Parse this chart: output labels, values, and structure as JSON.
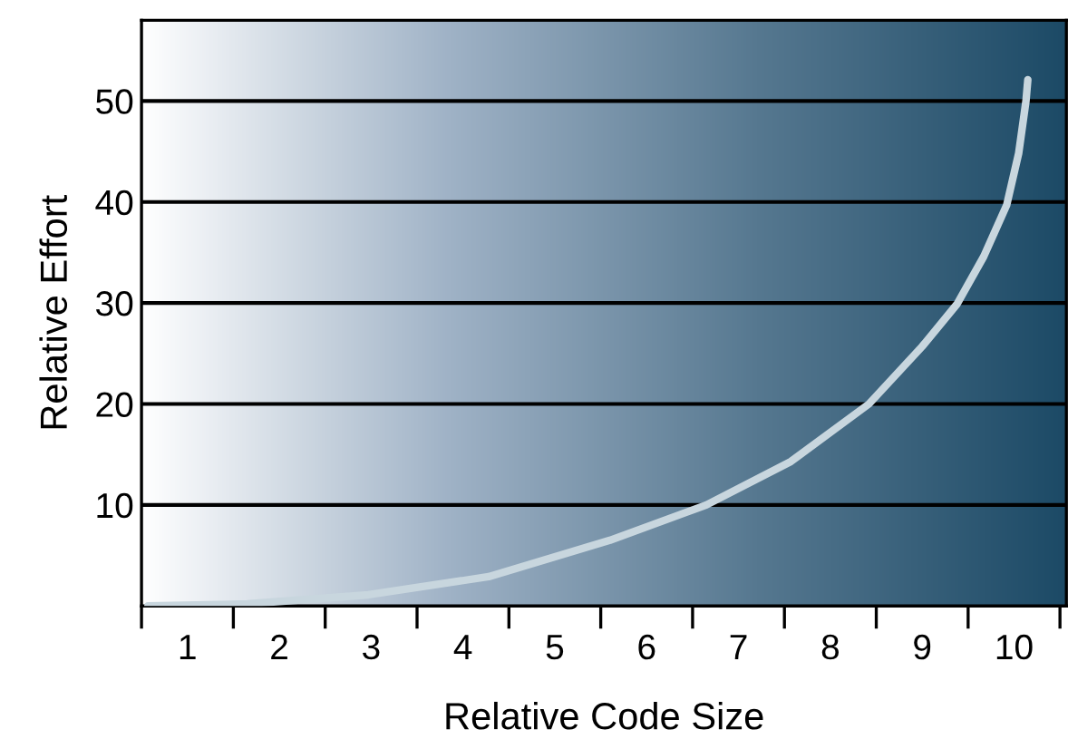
{
  "chart_data": {
    "type": "line",
    "xlabel": "Relative Code Size",
    "ylabel": "Relative Effort",
    "series": [
      {
        "color": "#c8d6de",
        "x": [
          0.57,
          1.65,
          2.97,
          4.28,
          5.6,
          6.65,
          7.57,
          8.42,
          9.0,
          9.38,
          9.67,
          9.92,
          10.05,
          10.13,
          10.15
        ],
        "values": [
          0,
          0.2,
          1.1,
          2.9,
          6.5,
          10,
          14.3,
          20,
          25.7,
          29.9,
          34.6,
          39.7,
          44.8,
          50,
          52.1
        ]
      }
    ],
    "xlim": [
      0.5,
      10.57
    ],
    "ylim": [
      0,
      58
    ],
    "xticks": [
      {
        "value": 0.5,
        "label": null
      },
      {
        "value": 1,
        "label": "1"
      },
      {
        "value": 1.5,
        "label": null
      },
      {
        "value": 2,
        "label": "2"
      },
      {
        "value": 2.5,
        "label": null
      },
      {
        "value": 3,
        "label": "3"
      },
      {
        "value": 3.5,
        "label": null
      },
      {
        "value": 4,
        "label": "4"
      },
      {
        "value": 4.5,
        "label": null
      },
      {
        "value": 5,
        "label": "5"
      },
      {
        "value": 5.5,
        "label": null
      },
      {
        "value": 6,
        "label": "6"
      },
      {
        "value": 6.5,
        "label": null
      },
      {
        "value": 7,
        "label": "7"
      },
      {
        "value": 7.5,
        "label": null
      },
      {
        "value": 8,
        "label": "8"
      },
      {
        "value": 8.5,
        "label": null
      },
      {
        "value": 9,
        "label": "9"
      },
      {
        "value": 9.5,
        "label": null
      },
      {
        "value": 10,
        "label": "10"
      },
      {
        "value": 10.5,
        "label": null
      }
    ],
    "yticks": [
      10,
      20,
      30,
      40,
      50
    ],
    "grid": "y",
    "marker": "none",
    "line_style": "solid"
  }
}
